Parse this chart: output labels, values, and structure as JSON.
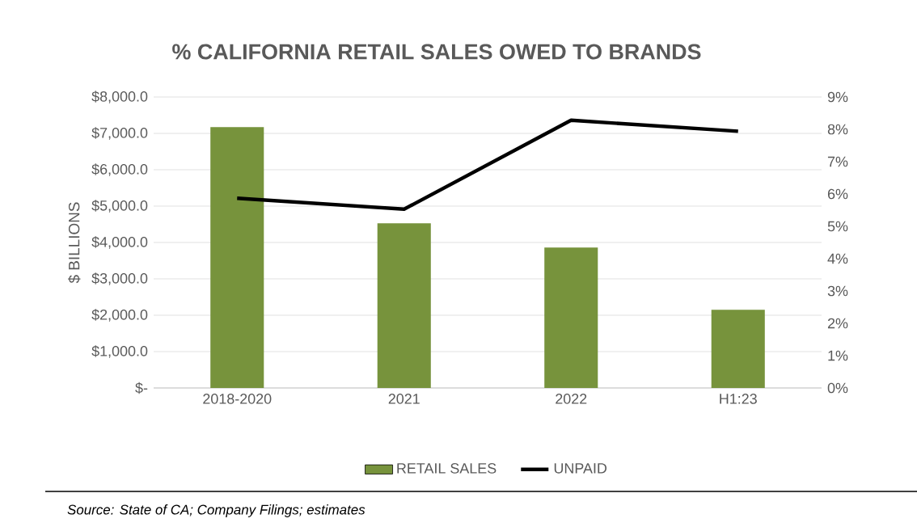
{
  "chart_data": {
    "type": "bar",
    "title": "% CALIFORNIA RETAIL SALES OWED TO BRANDS",
    "ylabel": "$ BILLIONS",
    "categories": [
      "2018-2020",
      "2021",
      "2022",
      "H1:23"
    ],
    "series": [
      {
        "name": "RETAIL SALES",
        "color": "#77933c",
        "values": [
          7170,
          4530,
          3860,
          2150
        ]
      },
      {
        "name": "UNPAID",
        "type": "line",
        "axis": "y2",
        "color": "#000000",
        "values": [
          5.87,
          5.53,
          8.28,
          7.94
        ]
      }
    ],
    "ylim": [
      0,
      8000
    ],
    "yticks": [
      {
        "value": 0,
        "label": "$-"
      },
      {
        "value": 1000,
        "label": "$1,000.0"
      },
      {
        "value": 2000,
        "label": "$2,000.0"
      },
      {
        "value": 3000,
        "label": "$3,000.0"
      },
      {
        "value": 4000,
        "label": "$4,000.0"
      },
      {
        "value": 5000,
        "label": "$5,000.0"
      },
      {
        "value": 6000,
        "label": "$6,000.0"
      },
      {
        "value": 7000,
        "label": "$7,000.0"
      },
      {
        "value": 8000,
        "label": "$8,000.0"
      }
    ],
    "y2lim": [
      0,
      9
    ],
    "y2ticks": [
      {
        "value": 0,
        "label": "0%"
      },
      {
        "value": 1,
        "label": "1%"
      },
      {
        "value": 2,
        "label": "2%"
      },
      {
        "value": 3,
        "label": "3%"
      },
      {
        "value": 4,
        "label": "4%"
      },
      {
        "value": 5,
        "label": "5%"
      },
      {
        "value": 6,
        "label": "6%"
      },
      {
        "value": 7,
        "label": "7%"
      },
      {
        "value": 8,
        "label": "8%"
      },
      {
        "value": 9,
        "label": "9%"
      }
    ],
    "grid": "y",
    "legend": "bottom",
    "marker": "none",
    "annotations": [
      "Source: State of CA; Company Filings; estimates"
    ]
  }
}
